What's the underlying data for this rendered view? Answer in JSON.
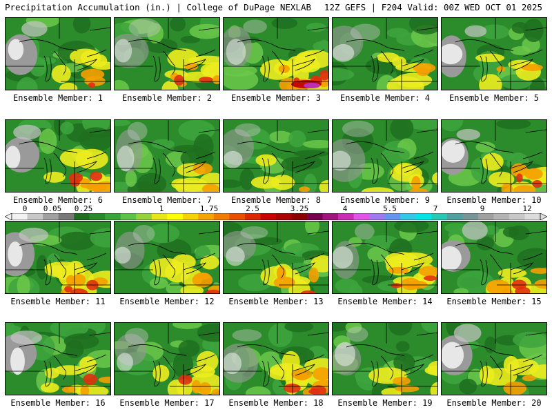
{
  "header": {
    "left": "Precipitation Accumulation (in.) | College of DuPage NEXLAB",
    "right": "12Z GEFS | F204 Valid: 00Z WED OCT 01 2025"
  },
  "colorbar": {
    "tick_labels": [
      "0",
      "0.05",
      "0.25",
      "1",
      "1.75",
      "2.5",
      "3.25",
      "4",
      "5.5",
      "7",
      "9",
      "12"
    ],
    "colors": [
      "#f2f2f2",
      "#c8c8c8",
      "#a0a0a0",
      "#787878",
      "#1f6e1f",
      "#2a8a2a",
      "#3aa33a",
      "#5cc24a",
      "#96d23c",
      "#e6e619",
      "#ffff00",
      "#f5d200",
      "#f5a500",
      "#f07d00",
      "#e65000",
      "#dc2800",
      "#c80000",
      "#aa0000",
      "#8c0000",
      "#780050",
      "#a0147d",
      "#c82db4",
      "#e155e6",
      "#a078f0",
      "#6496f0",
      "#32c8e6",
      "#00e6e6",
      "#28c8b4",
      "#50a0a0",
      "#789696",
      "#a0a0a0",
      "#b4b4b4",
      "#c8c8c8",
      "#dcdcdc"
    ]
  },
  "panels": [
    {
      "label": "Ensemble Member: 1",
      "member": 1
    },
    {
      "label": "Ensemble Member: 2",
      "member": 2
    },
    {
      "label": "Ensemble Member: 3",
      "member": 3
    },
    {
      "label": "Ensemble Member: 4",
      "member": 4
    },
    {
      "label": "Ensemble Member: 5",
      "member": 5
    },
    {
      "label": "Ensemble Member: 6",
      "member": 6
    },
    {
      "label": "Ensemble Member: 7",
      "member": 7
    },
    {
      "label": "Ensemble Member: 8",
      "member": 8
    },
    {
      "label": "Ensemble Member: 9",
      "member": 9
    },
    {
      "label": "Ensemble Member: 10",
      "member": 10
    },
    {
      "label": "Ensemble Member: 11",
      "member": 11
    },
    {
      "label": "Ensemble Member: 12",
      "member": 12
    },
    {
      "label": "Ensemble Member: 13",
      "member": 13
    },
    {
      "label": "Ensemble Member: 14",
      "member": 14
    },
    {
      "label": "Ensemble Member: 15",
      "member": 15
    },
    {
      "label": "Ensemble Member: 16",
      "member": 16
    },
    {
      "label": "Ensemble Member: 17",
      "member": 17
    },
    {
      "label": "Ensemble Member: 18",
      "member": 18
    },
    {
      "label": "Ensemble Member: 19",
      "member": 19
    },
    {
      "label": "Ensemble Member: 20",
      "member": 20
    }
  ]
}
